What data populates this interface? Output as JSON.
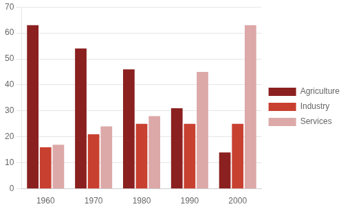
{
  "chart_data": {
    "type": "bar",
    "categories": [
      "1960",
      "1970",
      "1980",
      "1990",
      "2000"
    ],
    "series": [
      {
        "name": "Agriculture",
        "color": "#8b2020",
        "values": [
          63,
          54,
          46,
          31,
          14
        ]
      },
      {
        "name": "Industry",
        "color": "#c84030",
        "values": [
          16,
          21,
          25,
          25,
          25
        ]
      },
      {
        "name": "Services",
        "color": "#dca8a8",
        "values": [
          17,
          24,
          28,
          45,
          63
        ]
      }
    ],
    "ylim": [
      0,
      70
    ],
    "yticks": [
      0,
      10,
      20,
      30,
      40,
      50,
      60,
      70
    ],
    "grid": true,
    "legend": "right"
  }
}
